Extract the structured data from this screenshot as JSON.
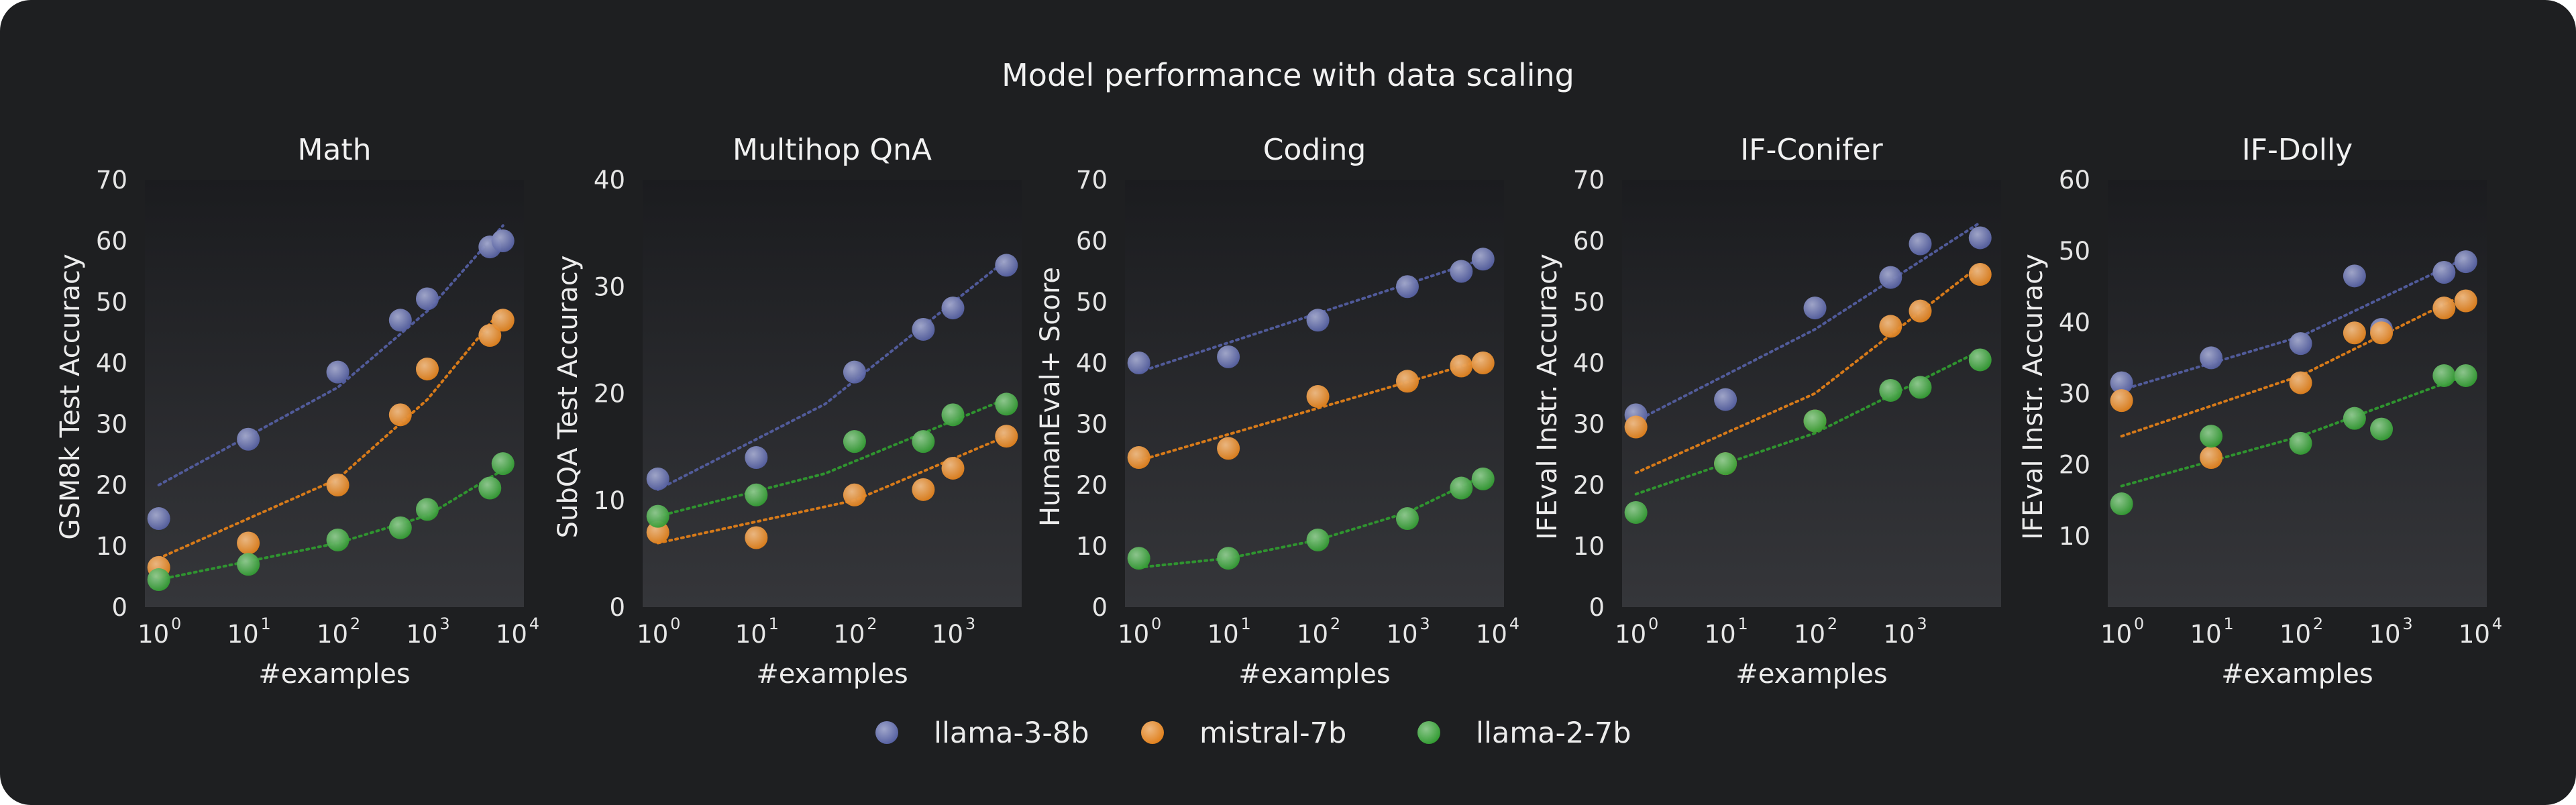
{
  "title": "Model performance with data scaling",
  "colors": {
    "llama-3-8b": "#535ea0",
    "mistral-7b": "#e07e18",
    "llama-2-7b": "#2f9a2f"
  },
  "legend": {
    "placement": "bottom-center",
    "items": [
      "llama-3-8b",
      "mistral-7b",
      "llama-2-7b"
    ]
  },
  "chart_data": [
    {
      "type": "scatter",
      "title": "Math",
      "xlabel": "#examples",
      "ylabel": "GSM8k Test Accuracy",
      "xscale": "log",
      "xlim": [
        0.7,
        12000
      ],
      "ylim": [
        0,
        70
      ],
      "yticks": [
        0,
        10,
        20,
        30,
        40,
        50,
        60,
        70
      ],
      "xticks_exp": [
        0,
        1,
        2,
        3,
        4
      ],
      "series": [
        {
          "name": "llama-3-8b",
          "x": [
            1,
            10,
            100,
            500,
            1000,
            5000,
            7000
          ],
          "y": [
            14.5,
            27.5,
            38.5,
            47,
            50.5,
            59,
            60
          ],
          "fit_x": [
            1,
            100,
            1000,
            7000
          ],
          "fit_y": [
            20,
            36,
            48.5,
            62.5
          ]
        },
        {
          "name": "mistral-7b",
          "x": [
            1,
            10,
            100,
            500,
            1000,
            5000,
            7000
          ],
          "y": [
            6.5,
            10.5,
            20,
            31.5,
            39,
            44.5,
            47
          ],
          "fit_x": [
            1,
            100,
            1000,
            7000
          ],
          "fit_y": [
            8,
            21,
            34,
            49
          ]
        },
        {
          "name": "llama-2-7b",
          "x": [
            1,
            10,
            100,
            500,
            1000,
            5000,
            7000
          ],
          "y": [
            4.5,
            7,
            11,
            13,
            16,
            19.5,
            23.5
          ],
          "fit_x": [
            1,
            100,
            1000,
            7000
          ],
          "fit_y": [
            4.5,
            10.5,
            15,
            22.5
          ]
        }
      ]
    },
    {
      "type": "scatter",
      "title": "Multihop QnA",
      "xlabel": "#examples",
      "ylabel": "SubQA Test Accuracy",
      "xscale": "log",
      "xlim": [
        0.7,
        5000
      ],
      "ylim": [
        0,
        40
      ],
      "yticks": [
        0,
        10,
        20,
        30,
        40
      ],
      "xticks_exp": [
        0,
        1,
        2,
        3
      ],
      "series": [
        {
          "name": "llama-3-8b",
          "x": [
            1,
            10,
            100,
            500,
            1000,
            3500
          ],
          "y": [
            12,
            14,
            22,
            26,
            28,
            32
          ],
          "fit_x": [
            1,
            50,
            3500
          ],
          "fit_y": [
            11,
            19,
            32.5
          ]
        },
        {
          "name": "mistral-7b",
          "x": [
            1,
            10,
            100,
            500,
            1000,
            3500
          ],
          "y": [
            7,
            6.5,
            10.5,
            11,
            13,
            16
          ],
          "fit_x": [
            1,
            100,
            3500
          ],
          "fit_y": [
            6,
            10,
            16
          ]
        },
        {
          "name": "llama-2-7b",
          "x": [
            1,
            10,
            100,
            500,
            1000,
            3500
          ],
          "y": [
            8.5,
            10.5,
            15.5,
            15.5,
            18,
            19
          ],
          "fit_x": [
            1,
            50,
            3500
          ],
          "fit_y": [
            8.5,
            12.5,
            19.5
          ]
        }
      ]
    },
    {
      "type": "scatter",
      "title": "Coding",
      "xlabel": "#examples",
      "ylabel": "HumanEval+ Score",
      "xscale": "log",
      "xlim": [
        0.7,
        12000
      ],
      "ylim": [
        0,
        70
      ],
      "yticks": [
        0,
        10,
        20,
        30,
        40,
        50,
        60,
        70
      ],
      "xticks_exp": [
        0,
        1,
        2,
        3,
        4
      ],
      "series": [
        {
          "name": "llama-3-8b",
          "x": [
            1,
            10,
            100,
            1000,
            4000,
            7000
          ],
          "y": [
            40,
            41,
            47,
            52.5,
            55,
            57
          ],
          "fit_x": [
            1,
            7000
          ],
          "fit_y": [
            38.5,
            57
          ]
        },
        {
          "name": "mistral-7b",
          "x": [
            1,
            10,
            100,
            1000,
            4000,
            7000
          ],
          "y": [
            24.5,
            26,
            34.5,
            37,
            39.5,
            40
          ],
          "fit_x": [
            1,
            7000
          ],
          "fit_y": [
            24,
            40.5
          ]
        },
        {
          "name": "llama-2-7b",
          "x": [
            1,
            10,
            100,
            1000,
            4000,
            7000
          ],
          "y": [
            8,
            8,
            11,
            14.5,
            19.5,
            21
          ],
          "fit_x": [
            1,
            10,
            100,
            1000,
            7000
          ],
          "fit_y": [
            6.5,
            8,
            11,
            15.5,
            21.5
          ]
        }
      ]
    },
    {
      "type": "scatter",
      "title": "IF-Conifer",
      "xlabel": "#examples",
      "ylabel": "IFEval Instr. Accuracy",
      "xscale": "log",
      "xlim": [
        0.7,
        12000
      ],
      "ylim": [
        0,
        70
      ],
      "yticks": [
        0,
        10,
        20,
        30,
        40,
        50,
        60,
        70
      ],
      "xticks_exp": [
        0,
        1,
        2,
        3
      ],
      "series": [
        {
          "name": "llama-3-8b",
          "x": [
            1,
            10,
            100,
            700,
            1500,
            7000
          ],
          "y": [
            31.5,
            34,
            49,
            54,
            59.5,
            60.5
          ],
          "fit_x": [
            1,
            100,
            7000
          ],
          "fit_y": [
            30.5,
            45.5,
            63
          ]
        },
        {
          "name": "mistral-7b",
          "x": [
            1,
            10,
            100,
            700,
            1500,
            7000
          ],
          "y": [
            29.5,
            23.5,
            30.5,
            46,
            48.5,
            54.5
          ],
          "fit_x": [
            1,
            100,
            7000
          ],
          "fit_y": [
            22,
            35,
            56
          ]
        },
        {
          "name": "llama-2-7b",
          "x": [
            1,
            10,
            100,
            700,
            1500,
            7000
          ],
          "y": [
            15.5,
            23.5,
            30.5,
            35.5,
            36,
            40.5
          ],
          "fit_x": [
            1,
            100,
            7000
          ],
          "fit_y": [
            18.5,
            28.5,
            42
          ]
        }
      ]
    },
    {
      "type": "scatter",
      "title": "IF-Dolly",
      "xlabel": "#examples",
      "ylabel": "IFEval Instr. Accuracy",
      "xscale": "log",
      "xlim": [
        0.7,
        12000
      ],
      "ylim": [
        0,
        60
      ],
      "yticks": [
        10,
        20,
        30,
        40,
        50,
        60
      ],
      "xticks_exp": [
        0,
        1,
        2,
        3,
        4
      ],
      "series": [
        {
          "name": "llama-3-8b",
          "x": [
            1,
            10,
            100,
            400,
            800,
            4000,
            7000
          ],
          "y": [
            31.5,
            35,
            37,
            46.5,
            39,
            47,
            48.5
          ],
          "fit_x": [
            1,
            100,
            7000
          ],
          "fit_y": [
            30.5,
            38,
            49
          ]
        },
        {
          "name": "mistral-7b",
          "x": [
            1,
            10,
            100,
            400,
            800,
            4000,
            7000
          ],
          "y": [
            29,
            21,
            31.5,
            38.5,
            38.5,
            42,
            43
          ],
          "fit_x": [
            1,
            100,
            7000
          ],
          "fit_y": [
            24,
            32.5,
            44
          ]
        },
        {
          "name": "llama-2-7b",
          "x": [
            1,
            10,
            100,
            400,
            800,
            4000,
            7000
          ],
          "y": [
            14.5,
            24,
            23,
            26.5,
            25,
            32.5,
            32.5
          ],
          "fit_x": [
            1,
            100,
            7000
          ],
          "fit_y": [
            17,
            24,
            32.5
          ]
        }
      ]
    }
  ]
}
